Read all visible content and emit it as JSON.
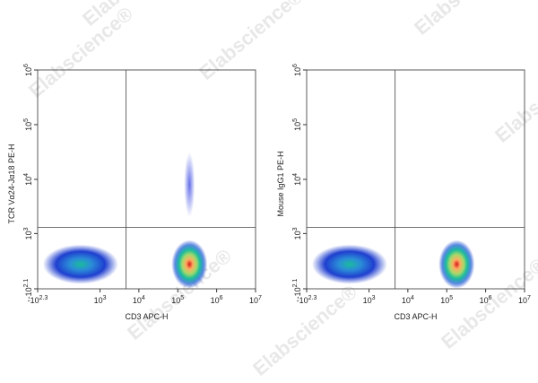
{
  "watermark": "Elabscience®",
  "chart_data": [
    {
      "type": "density",
      "x_label": "CD3 APC-H",
      "y_label": "TCR Vα24-Jα18 PE-H",
      "xlim": [
        -199.5,
        10000000
      ],
      "ylim": [
        -125.9,
        1000000
      ],
      "xticks": [
        {
          "value": -199.5,
          "label": "-10",
          "exp": "2.3"
        },
        {
          "value": 1000,
          "label": "10",
          "exp": "3"
        },
        {
          "value": 10000,
          "label": "10",
          "exp": "4"
        },
        {
          "value": 100000,
          "label": "10",
          "exp": "5"
        },
        {
          "value": 1000000,
          "label": "10",
          "exp": "6"
        },
        {
          "value": 10000000,
          "label": "10",
          "exp": "7"
        }
      ],
      "yticks": [
        {
          "value": -125.9,
          "label": "-10",
          "exp": "2.1"
        },
        {
          "value": 1000,
          "label": "10",
          "exp": "3"
        },
        {
          "value": 10000,
          "label": "10",
          "exp": "4"
        },
        {
          "value": 100000,
          "label": "10",
          "exp": "5"
        },
        {
          "value": 1000000,
          "label": "10",
          "exp": "6"
        }
      ],
      "gate_x": 4700,
      "gate_y": 1300,
      "populations": {
        "x": [
          300,
          200000,
          200000
        ],
        "y": [
          200,
          200,
          8000
        ]
      }
    },
    {
      "type": "density",
      "x_label": "CD3 APC-H",
      "y_label": "Mouse IgG1 PE-H",
      "xlim": [
        -199.5,
        10000000
      ],
      "ylim": [
        -125.9,
        1000000
      ],
      "xticks": [
        {
          "value": -199.5,
          "label": "-10",
          "exp": "2.3"
        },
        {
          "value": 1000,
          "label": "10",
          "exp": "3"
        },
        {
          "value": 10000,
          "label": "10",
          "exp": "4"
        },
        {
          "value": 100000,
          "label": "10",
          "exp": "5"
        },
        {
          "value": 1000000,
          "label": "10",
          "exp": "6"
        },
        {
          "value": 10000000,
          "label": "10",
          "exp": "7"
        }
      ],
      "yticks": [
        {
          "value": -125.9,
          "label": "-10",
          "exp": "2.1"
        },
        {
          "value": 1000,
          "label": "10",
          "exp": "3"
        },
        {
          "value": 10000,
          "label": "10",
          "exp": "4"
        },
        {
          "value": 100000,
          "label": "10",
          "exp": "5"
        },
        {
          "value": 1000000,
          "label": "10",
          "exp": "6"
        }
      ],
      "gate_x": 4700,
      "gate_y": 1300,
      "populations": {
        "x": [
          300,
          180000
        ],
        "y": [
          200,
          200
        ]
      }
    }
  ]
}
